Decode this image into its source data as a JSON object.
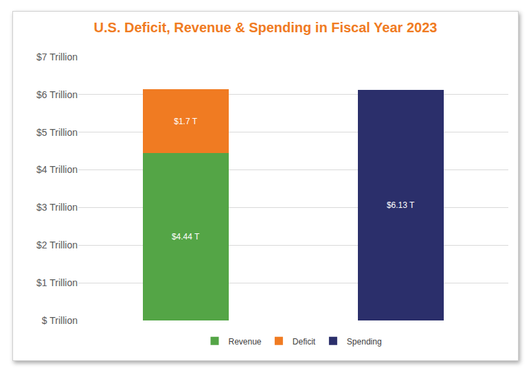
{
  "chart_data": {
    "type": "bar",
    "title": "U.S. Deficit, Revenue & Spending in Fiscal Year 2023",
    "categories": [
      null,
      null
    ],
    "series": [
      {
        "name": "Revenue",
        "color": "#54a546",
        "values": [
          4.44,
          null
        ],
        "value_labels": [
          "$4.44 T",
          null
        ]
      },
      {
        "name": "Deficit",
        "color": "#f07b22",
        "values": [
          1.7,
          null
        ],
        "value_labels": [
          "$1.7 T",
          null
        ]
      },
      {
        "name": "Spending",
        "color": "#2b2f6b",
        "values": [
          null,
          6.13
        ],
        "value_labels": [
          null,
          "$6.13 T"
        ]
      }
    ],
    "stacked": true,
    "data_labels": true,
    "legend": "bottom",
    "grid": true,
    "ylim": [
      0,
      7
    ],
    "yticks": [
      {
        "value": 0,
        "label": "$ Trillion"
      },
      {
        "value": 1,
        "label": "$1 Trillion"
      },
      {
        "value": 2,
        "label": "$2 Trillion"
      },
      {
        "value": 3,
        "label": "$3 Trillion"
      },
      {
        "value": 4,
        "label": "$4 Trillion"
      },
      {
        "value": 5,
        "label": "$5 Trillion"
      },
      {
        "value": 6,
        "label": "$6 Trillion"
      },
      {
        "value": 7,
        "label": "$7 Trillion"
      }
    ]
  }
}
